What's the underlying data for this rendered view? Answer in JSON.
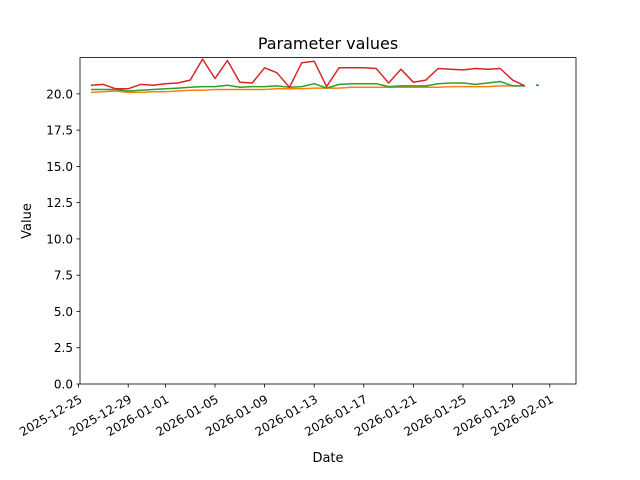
{
  "chart_data": {
    "type": "line",
    "title": "Parameter values",
    "xlabel": "Date",
    "ylabel": "Value",
    "x_ticks": [
      "2025-12-25",
      "2025-12-29",
      "2026-01-01",
      "2026-01-05",
      "2026-01-09",
      "2026-01-13",
      "2026-01-17",
      "2026-01-21",
      "2026-01-25",
      "2026-01-29",
      "2026-02-01"
    ],
    "y_ticks": [
      "0.0",
      "2.5",
      "5.0",
      "7.5",
      "10.0",
      "12.5",
      "15.0",
      "17.5",
      "20.0"
    ],
    "xlim": [
      "2025-12-24",
      "2026-02-01"
    ],
    "ylim": [
      0,
      22.5
    ],
    "grid": false,
    "legend": "none",
    "x": [
      "2025-12-26",
      "2025-12-27",
      "2025-12-28",
      "2025-12-29",
      "2025-12-30",
      "2025-12-31",
      "2026-01-01",
      "2026-01-02",
      "2026-01-03",
      "2026-01-04",
      "2026-01-05",
      "2026-01-06",
      "2026-01-07",
      "2026-01-08",
      "2026-01-09",
      "2026-01-10",
      "2026-01-11",
      "2026-01-12",
      "2026-01-13",
      "2026-01-14",
      "2026-01-15",
      "2026-01-16",
      "2026-01-17",
      "2026-01-18",
      "2026-01-19",
      "2026-01-20",
      "2026-01-21",
      "2026-01-22",
      "2026-01-23",
      "2026-01-24",
      "2026-01-25",
      "2026-01-26",
      "2026-01-27",
      "2026-01-28",
      "2026-01-29",
      "2026-01-30",
      "2026-01-31"
    ],
    "series": [
      {
        "color": "#1f77b4",
        "values": [
          null,
          null,
          null,
          null,
          null,
          null,
          null,
          null,
          null,
          null,
          null,
          null,
          null,
          null,
          null,
          null,
          null,
          null,
          null,
          null,
          null,
          null,
          null,
          null,
          null,
          null,
          null,
          null,
          null,
          null,
          null,
          null,
          null,
          null,
          null,
          null,
          20.6
        ]
      },
      {
        "color": "#ff7f0e",
        "values": [
          20.1,
          20.15,
          20.2,
          20.1,
          20.1,
          20.15,
          20.15,
          20.2,
          20.25,
          20.25,
          20.3,
          20.3,
          20.3,
          20.3,
          20.3,
          20.35,
          20.35,
          20.35,
          20.4,
          20.4,
          20.4,
          20.45,
          20.45,
          20.45,
          20.45,
          20.45,
          20.45,
          20.45,
          20.45,
          20.5,
          20.5,
          20.5,
          20.5,
          20.55,
          20.55,
          20.55,
          null
        ]
      },
      {
        "color": "#2ca02c",
        "values": [
          20.3,
          20.3,
          20.3,
          20.2,
          20.25,
          20.3,
          20.35,
          20.4,
          20.45,
          20.5,
          20.5,
          20.6,
          20.45,
          20.5,
          20.5,
          20.55,
          20.45,
          20.5,
          20.7,
          20.4,
          20.65,
          20.7,
          20.7,
          20.7,
          20.5,
          20.55,
          20.55,
          20.55,
          20.7,
          20.75,
          20.75,
          20.65,
          20.75,
          20.85,
          20.55,
          20.55,
          null
        ]
      },
      {
        "color": "#d62728",
        "values": [
          20.6,
          20.65,
          20.35,
          20.35,
          20.65,
          20.6,
          20.7,
          20.75,
          20.95,
          22.4,
          21.05,
          22.3,
          20.8,
          20.75,
          21.8,
          21.45,
          20.45,
          22.15,
          22.25,
          20.5,
          21.8,
          21.8,
          21.8,
          21.75,
          20.75,
          21.7,
          20.8,
          20.95,
          21.75,
          21.7,
          21.65,
          21.75,
          21.7,
          21.75,
          20.95,
          20.55,
          null
        ]
      }
    ]
  }
}
